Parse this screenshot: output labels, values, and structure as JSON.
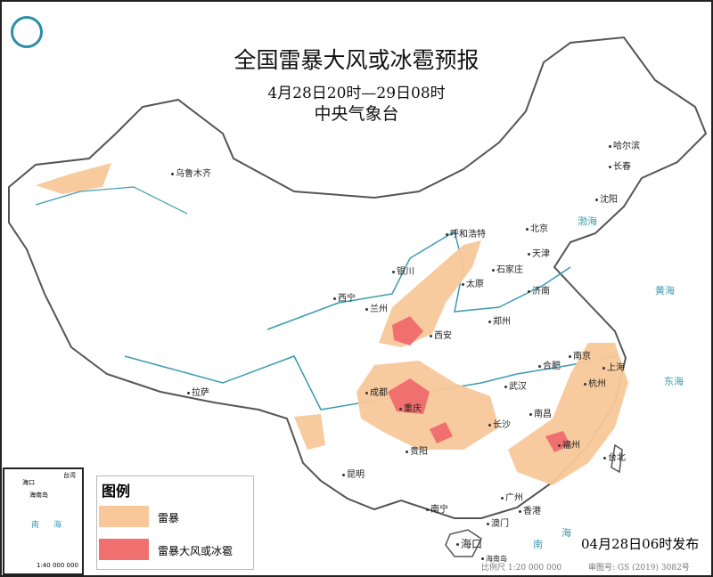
{
  "header": {
    "title": "全国雷暴大风或冰雹预报",
    "period": "4月28日20时—29日08时",
    "issuer": "中央气象台"
  },
  "legend": {
    "title": "图例",
    "items": [
      {
        "label": "雷暴",
        "color": "#f8c89a"
      },
      {
        "label": "雷暴大风或冰雹",
        "color": "#f07070"
      }
    ]
  },
  "cities": [
    "乌鲁木齐",
    "哈尔滨",
    "长春",
    "沈阳",
    "呼和浩特",
    "北京",
    "天津",
    "银川",
    "石家庄",
    "太原",
    "济南",
    "西宁",
    "兰州",
    "郑州",
    "西安",
    "合肥",
    "南京",
    "上海",
    "杭州",
    "武汉",
    "成都",
    "重庆",
    "拉萨",
    "长沙",
    "南昌",
    "福州",
    "台北",
    "贵阳",
    "昆明",
    "南宁",
    "广州",
    "香港",
    "澳门",
    "海口"
  ],
  "seas": [
    "渤海",
    "黄海",
    "东海",
    "南",
    "海",
    "海南岛"
  ],
  "inset": {
    "labels": [
      "海口",
      "海南岛",
      "台湾",
      "南",
      "海"
    ],
    "scale": "1:40 000 000"
  },
  "footer": {
    "issued": "04月28日06时发布",
    "scale": "比例尺 1:20 000 000",
    "review": "审图号: GS (2019) 3082号"
  },
  "colors": {
    "water": "#3a9bb0",
    "border": "#555"
  }
}
